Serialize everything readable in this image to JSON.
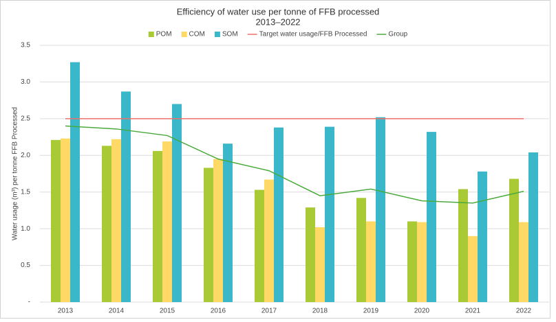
{
  "chart_data": {
    "type": "bar",
    "title": "Efficiency of water use per tonne of FFB processed",
    "subtitle": "2013–2022",
    "y_label": "Water usage (m³) per tonne FFB Processed",
    "categories": [
      "2013",
      "2014",
      "2015",
      "2016",
      "2017",
      "2018",
      "2019",
      "2020",
      "2021",
      "2022"
    ],
    "series": [
      {
        "name": "POM",
        "type": "bar",
        "color": "#a9c935",
        "values": [
          2.21,
          2.13,
          2.06,
          1.83,
          1.53,
          1.29,
          1.42,
          1.1,
          1.54,
          1.68
        ]
      },
      {
        "name": "COM",
        "type": "bar",
        "color": "#ffd966",
        "values": [
          2.23,
          2.22,
          2.19,
          1.95,
          1.67,
          1.02,
          1.1,
          1.09,
          0.9,
          1.09
        ]
      },
      {
        "name": "SOM",
        "type": "bar",
        "color": "#3ab7c8",
        "values": [
          3.27,
          2.87,
          2.7,
          2.16,
          2.38,
          2.39,
          2.52,
          2.32,
          1.78,
          2.04
        ]
      },
      {
        "name": "Target water usage/FFB Processed",
        "type": "line",
        "color": "#f0706a",
        "values": [
          2.5,
          2.5,
          2.5,
          2.5,
          2.5,
          2.5,
          2.5,
          2.5,
          2.5,
          2.5
        ]
      },
      {
        "name": "Group",
        "type": "line",
        "color": "#4aaa3c",
        "values": [
          2.4,
          2.36,
          2.27,
          1.95,
          1.79,
          1.45,
          1.54,
          1.38,
          1.35,
          1.51
        ]
      }
    ],
    "ylim": [
      0,
      3.5
    ],
    "yticks": [
      {
        "value": 0,
        "label": "-"
      },
      0.5,
      {
        "value": 1,
        "label": "1.0"
      },
      1.5,
      {
        "value": 2,
        "label": "2.0"
      },
      2.5,
      {
        "value": 3,
        "label": "3.0"
      },
      3.5
    ],
    "grid": true,
    "legend": "top"
  }
}
